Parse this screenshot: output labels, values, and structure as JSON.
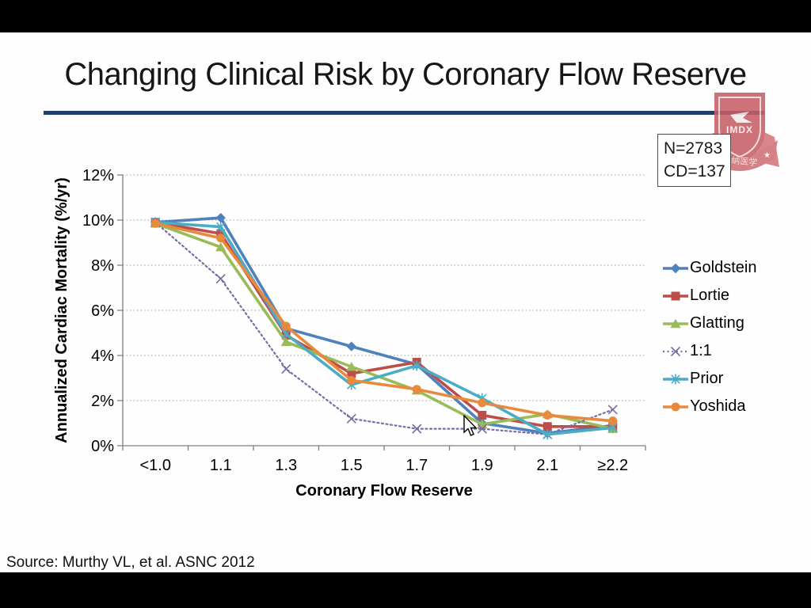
{
  "slide": {
    "title": "Changing Clinical Risk by Coronary Flow Reserve",
    "source": "Source: Murthy VL, et al. ASNC 2012",
    "stats_box": {
      "line1": "N=2783",
      "line2": "CD=137"
    },
    "logo": {
      "shield_text": "IMDX",
      "banner_text": "解纳医学"
    },
    "accent_rule_color": "#20406b"
  },
  "chart_data": {
    "type": "line",
    "title": "",
    "xlabel": "Coronary Flow Reserve",
    "ylabel": "Annualized Cardiac Mortality (%/yr)",
    "categories": [
      "<1.0",
      "1.1",
      "1.3",
      "1.5",
      "1.7",
      "1.9",
      "2.1",
      "≥2.2"
    ],
    "ytick_values": [
      0,
      2,
      4,
      6,
      8,
      10,
      12
    ],
    "ytick_labels": [
      "0%",
      "2%",
      "4%",
      "6%",
      "8%",
      "10%",
      "12%"
    ],
    "ylim": [
      0,
      12
    ],
    "grid": "horizontal-dotted",
    "legend_position": "right",
    "series": [
      {
        "name": "Goldstein",
        "color": "#4F81BD",
        "marker": "diamond",
        "line": "solid",
        "values": [
          9.9,
          10.1,
          5.2,
          4.4,
          3.6,
          1.0,
          0.55,
          0.9
        ]
      },
      {
        "name": "Lortie",
        "color": "#BE4C48",
        "marker": "square",
        "line": "solid",
        "values": [
          9.9,
          9.4,
          4.9,
          3.2,
          3.7,
          1.35,
          0.85,
          0.85
        ]
      },
      {
        "name": "Glatting",
        "color": "#9BBB59",
        "marker": "triangle",
        "line": "solid",
        "values": [
          9.85,
          8.8,
          4.6,
          3.5,
          2.45,
          0.95,
          1.4,
          0.75
        ]
      },
      {
        "name": "1:1",
        "color": "#7A6BA3",
        "marker": "x",
        "line": "dotted",
        "values": [
          9.9,
          7.4,
          3.4,
          1.2,
          0.75,
          0.75,
          0.5,
          1.6
        ]
      },
      {
        "name": "Prior",
        "color": "#4BACC6",
        "marker": "asterisk",
        "line": "solid",
        "values": [
          9.9,
          9.7,
          4.95,
          2.7,
          3.55,
          2.1,
          0.5,
          0.8
        ]
      },
      {
        "name": "Yoshida",
        "color": "#E8893C",
        "marker": "circle",
        "line": "solid",
        "values": [
          9.85,
          9.2,
          5.3,
          2.9,
          2.5,
          1.9,
          1.35,
          1.1
        ]
      }
    ]
  }
}
